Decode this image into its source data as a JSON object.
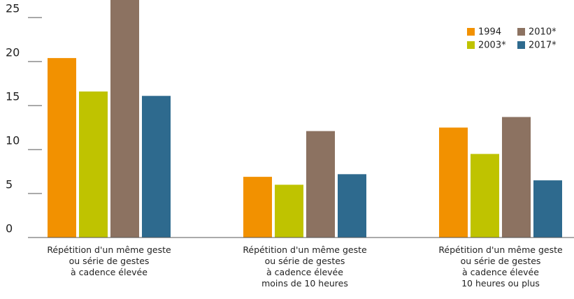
{
  "chart_data": {
    "type": "bar",
    "categories": [
      "Répétition d'un même geste\nou série de gestes\nà cadence élevée",
      "Répétition d'un même geste\nou série de gestes\nà cadence élevée\nmoins de 10 heures",
      "Répétition d'un même geste\nou série de gestes\nà cadence élevée\n10 heures ou plus"
    ],
    "series": [
      {
        "name": "1994",
        "color": "#f29100",
        "values": [
          20.4,
          6.9,
          12.5
        ]
      },
      {
        "name": "2003*",
        "color": "#bfc300",
        "values": [
          16.6,
          6.0,
          9.5
        ]
      },
      {
        "name": "2010*",
        "color": "#8c7261",
        "values": [
          27.5,
          12.1,
          13.7
        ]
      },
      {
        "name": "2017*",
        "color": "#2e6a8e",
        "values": [
          16.1,
          7.2,
          6.5
        ]
      }
    ],
    "ylim": [
      0,
      27
    ],
    "yticks": [
      0,
      5,
      10,
      15,
      20,
      25
    ],
    "legend": "top-right"
  }
}
